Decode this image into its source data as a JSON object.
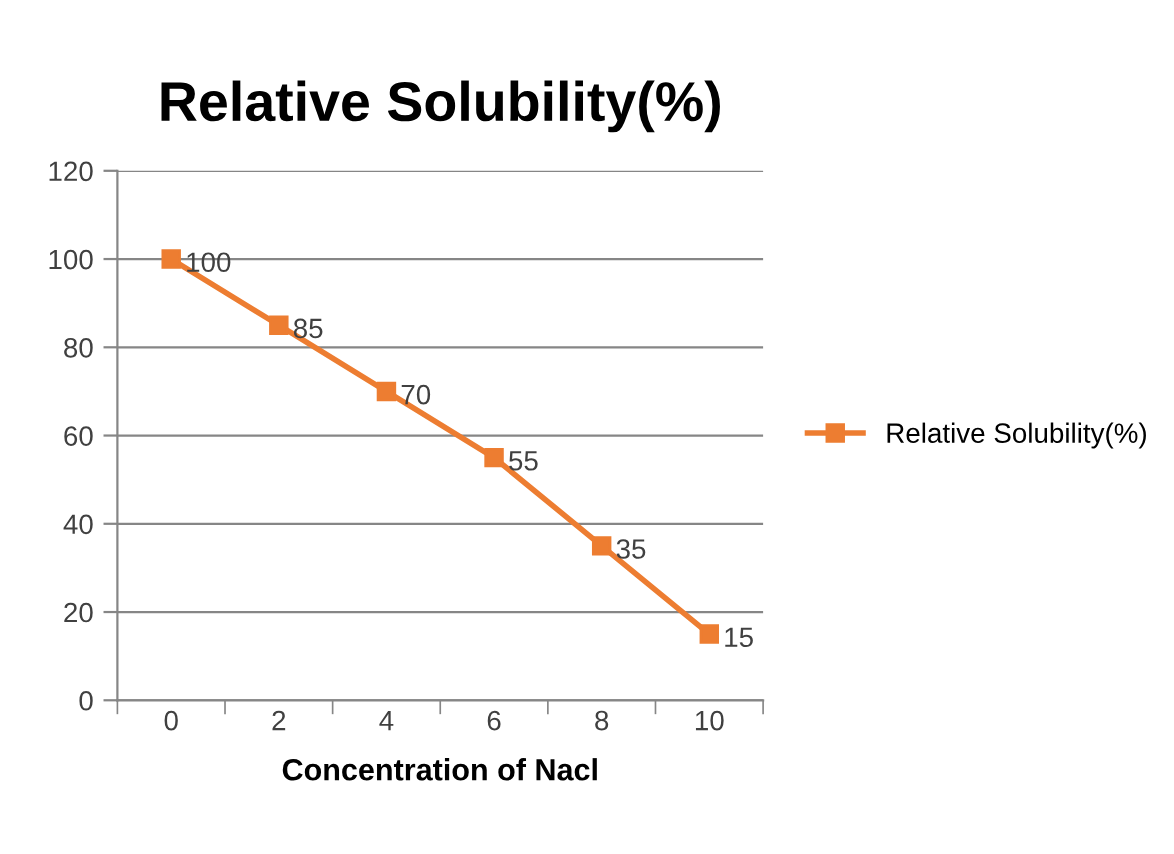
{
  "chart_data": {
    "type": "line",
    "title": "Relative Solubility(%)",
    "xlabel": "Concentration of Nacl",
    "categories": [
      "0",
      "2",
      "4",
      "6",
      "8",
      "10"
    ],
    "series": [
      {
        "name": "Relative Solubility(%)",
        "color": "#ed7d31",
        "values": [
          100,
          85,
          70,
          55,
          35,
          15
        ]
      }
    ],
    "ylim": [
      0,
      120
    ],
    "yticks": [
      0,
      20,
      40,
      60,
      80,
      100,
      120
    ],
    "grid": "y",
    "legend": "right",
    "marker": "square",
    "line_style": "solid",
    "data_labels": true
  }
}
